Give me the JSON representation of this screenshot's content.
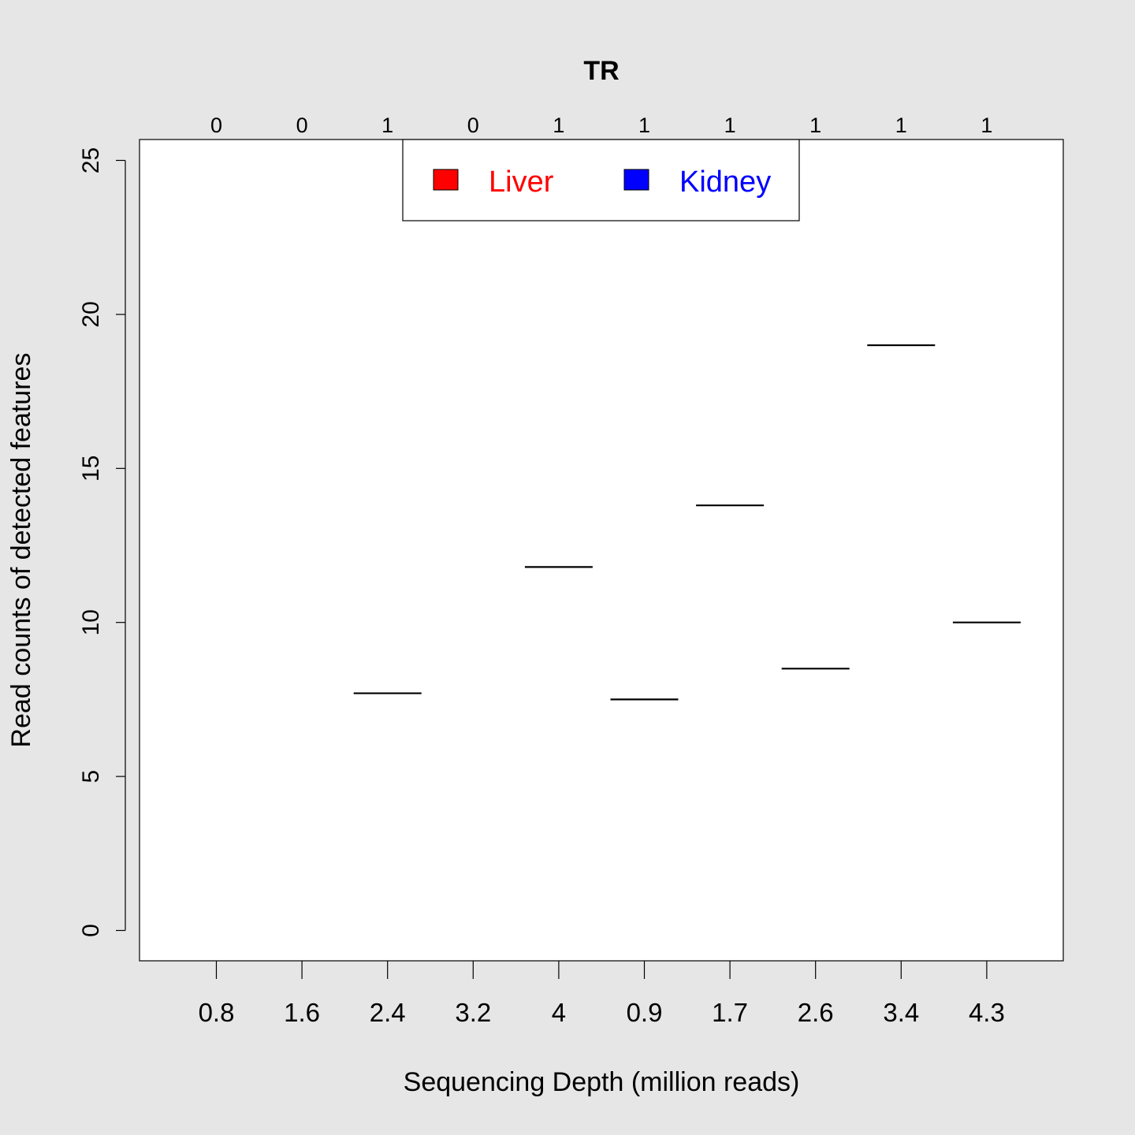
{
  "chart_data": {
    "type": "boxplot",
    "title": "TR",
    "xlabel": "Sequencing Depth (million reads)",
    "ylabel": "Read counts of detected features",
    "ylim": [
      0,
      25
    ],
    "yticks": [
      0,
      5,
      10,
      15,
      20,
      25
    ],
    "categories": [
      "0.8",
      "1.6",
      "2.4",
      "3.2",
      "4",
      "0.9",
      "1.7",
      "2.6",
      "3.4",
      "4.3"
    ],
    "top_labels": [
      "0",
      "0",
      "1",
      "0",
      "1",
      "1",
      "1",
      "1",
      "1",
      "1"
    ],
    "groups": [
      "Liver",
      "Liver",
      "Liver",
      "Liver",
      "Liver",
      "Kidney",
      "Kidney",
      "Kidney",
      "Kidney",
      "Kidney"
    ],
    "values": [
      null,
      null,
      7.7,
      null,
      11.8,
      7.5,
      13.8,
      8.5,
      19.0,
      10.0
    ],
    "legend": {
      "placement": "top",
      "items": [
        {
          "name": "Liver",
          "color": "#ff0000"
        },
        {
          "name": "Kidney",
          "color": "#0000ff"
        }
      ]
    },
    "grid": false
  }
}
